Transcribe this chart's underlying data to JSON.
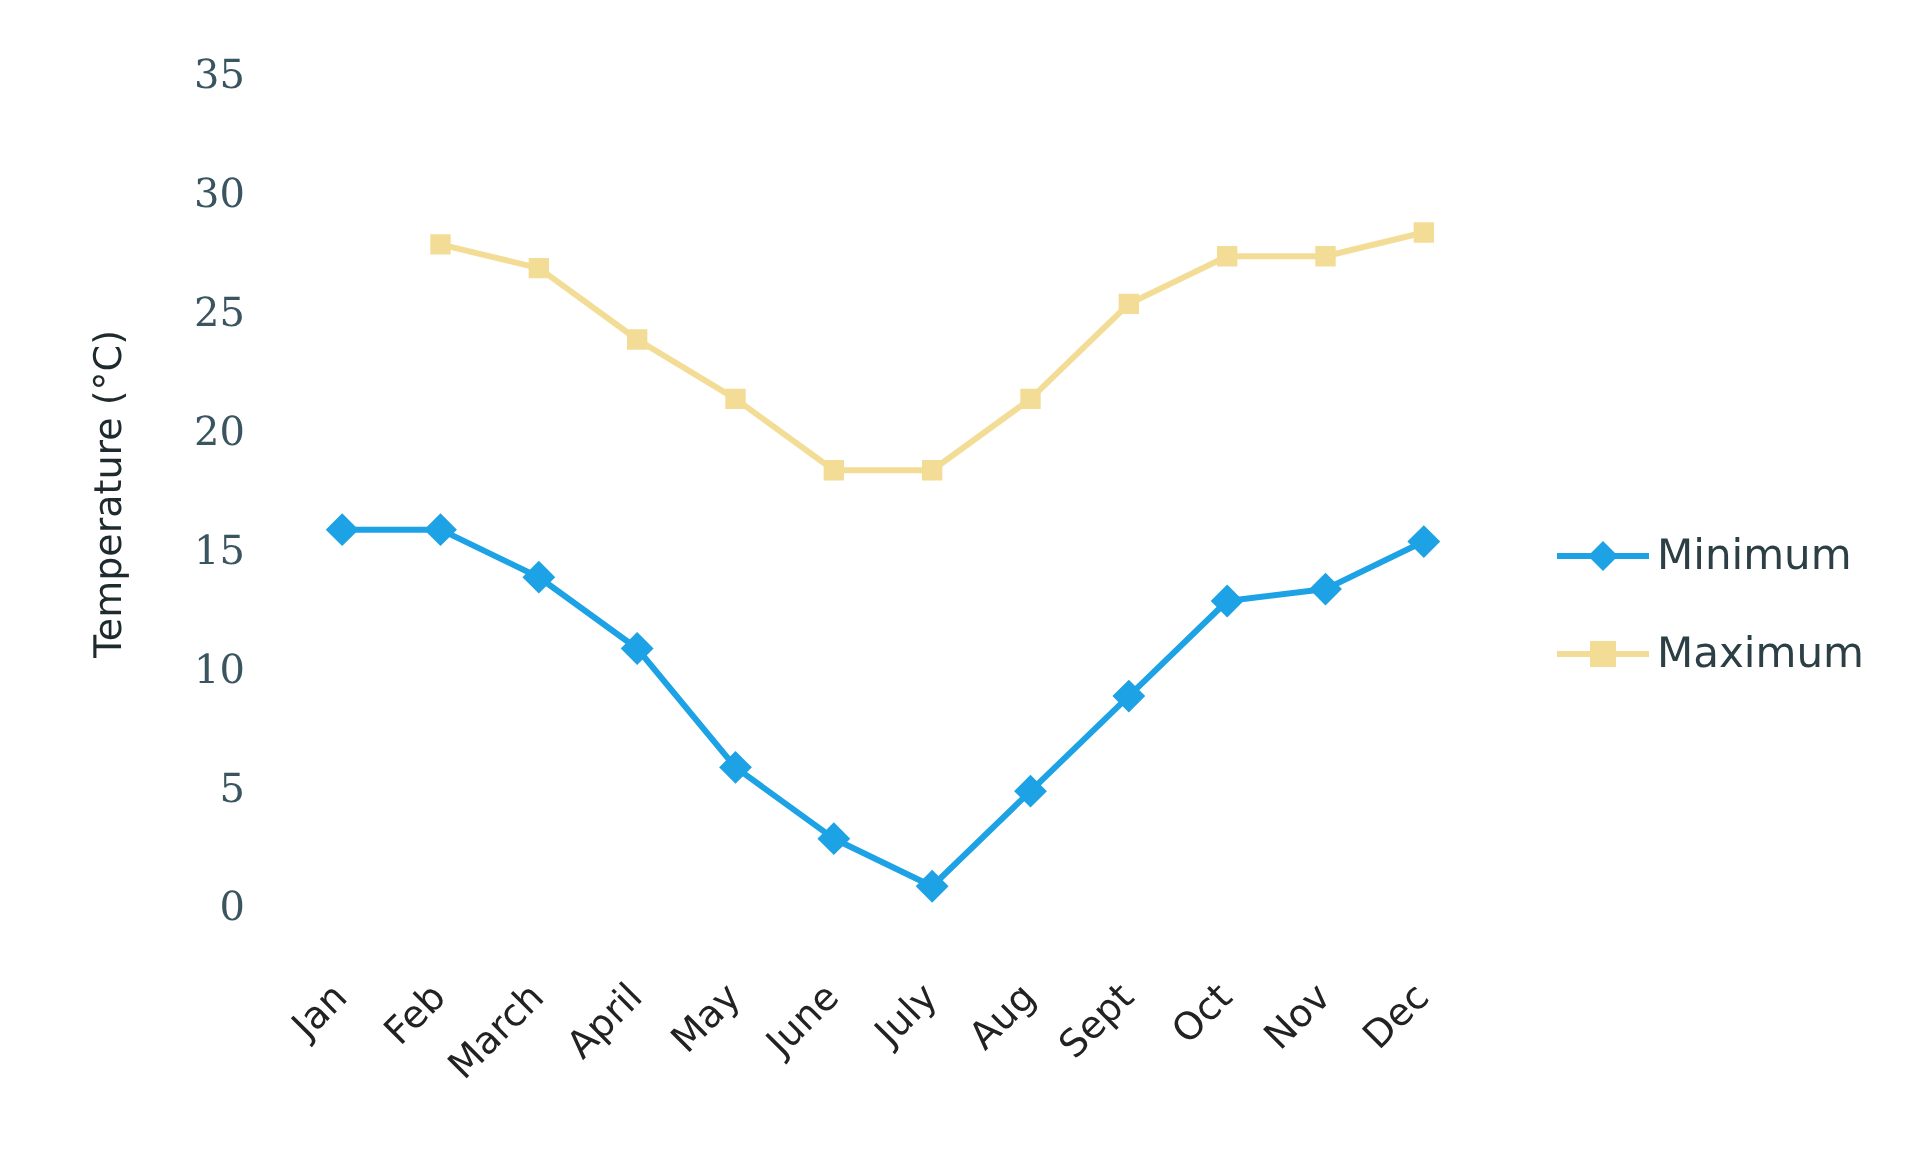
{
  "chart_data": {
    "type": "line",
    "ylabel": "Temperature (°C)",
    "categories": [
      "Jan",
      "Feb",
      "March",
      "April",
      "May",
      "June",
      "July",
      "Aug",
      "Sept",
      "Oct",
      "Nov",
      "Dec"
    ],
    "series": [
      {
        "name": "Minimum",
        "color": "#1ea2e6",
        "marker": "diamond",
        "values": [
          16,
          16,
          14,
          11,
          6,
          3,
          1,
          5,
          9,
          13,
          13.5,
          15.5
        ]
      },
      {
        "name": "Maximum",
        "color": "#f3dd96",
        "marker": "square",
        "values": [
          null,
          28,
          27,
          24,
          21.5,
          18.5,
          18.5,
          21.5,
          25.5,
          27.5,
          27.5,
          28.5
        ]
      }
    ],
    "ylim": [
      0,
      35
    ],
    "yticks": [
      0,
      5,
      10,
      15,
      20,
      25,
      30,
      35
    ],
    "grid": false,
    "legend": "right",
    "line_style": "solid"
  }
}
